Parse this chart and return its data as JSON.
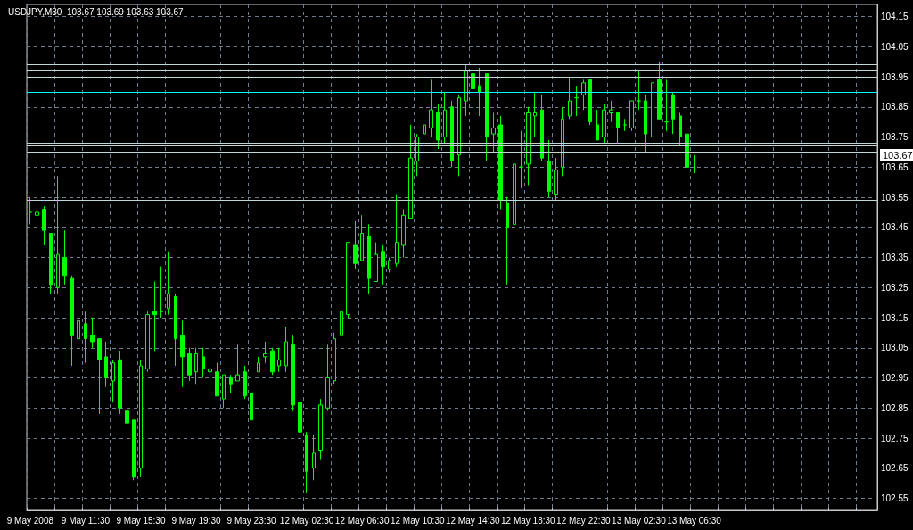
{
  "chart_data": {
    "type": "candlestick",
    "title": "USDJPY,M30  103.67 103.69 103.63 103.67",
    "color": "#00ff00",
    "categories": [
      "9 May 2008",
      null,
      null,
      null,
      null,
      null,
      null,
      null,
      "9 May 11:30",
      null,
      null,
      null,
      null,
      null,
      null,
      null,
      "9 May 15:30",
      null,
      null,
      null,
      null,
      null,
      null,
      null,
      "9 May 19:30",
      null,
      null,
      null,
      null,
      null,
      null,
      null,
      "9 May 23:30",
      null,
      null,
      null,
      null,
      null,
      null,
      null,
      "12 May 02:30",
      null,
      null,
      null,
      null,
      null,
      null,
      null,
      "12 May 06:30",
      null,
      null,
      null,
      null,
      null,
      null,
      null,
      "12 May 10:30",
      null,
      null,
      null,
      null,
      null,
      null,
      null,
      "12 May 14:30",
      null,
      null,
      null,
      null,
      null,
      null,
      null,
      "12 May 18:30",
      null,
      null,
      null,
      null,
      null,
      null,
      null,
      "12 May 22:30",
      null,
      null,
      null,
      null,
      null,
      null,
      null,
      "13 May 02:30",
      null,
      null,
      null,
      null,
      null,
      null,
      null,
      "13 May 06:30",
      null,
      null,
      null,
      null,
      null,
      null,
      null,
      null,
      null,
      null,
      null,
      null,
      null,
      null,
      null,
      null,
      null,
      null,
      null,
      null,
      null,
      null,
      null,
      null,
      null,
      null
    ],
    "ohlc": [
      [
        103.5,
        103.55,
        103.46,
        103.5
      ],
      [
        103.49,
        103.53,
        103.47,
        103.5
      ],
      [
        103.51,
        103.52,
        103.39,
        103.44
      ],
      [
        103.43,
        103.43,
        103.23,
        103.26
      ],
      [
        103.25,
        103.62,
        103.23,
        103.36
      ],
      [
        103.35,
        103.44,
        103.26,
        103.29
      ],
      [
        103.28,
        103.29,
        102.99,
        103.09
      ],
      [
        103.08,
        103.16,
        102.92,
        103.14
      ],
      [
        103.13,
        103.17,
        103.0,
        103.08
      ],
      [
        103.09,
        103.15,
        103.05,
        103.07
      ],
      [
        103.08,
        103.08,
        102.83,
        103.01
      ],
      [
        103.02,
        103.07,
        102.92,
        102.95
      ],
      [
        102.94,
        103.01,
        102.87,
        103.0
      ],
      [
        103.01,
        103.04,
        102.83,
        102.85
      ],
      [
        102.84,
        102.86,
        102.74,
        102.8
      ],
      [
        102.81,
        102.81,
        102.61,
        102.62
      ],
      [
        102.65,
        103.01,
        102.62,
        102.99
      ],
      [
        102.98,
        103.17,
        102.97,
        103.16
      ],
      [
        103.17,
        103.27,
        103.04,
        103.16
      ],
      [
        103.17,
        103.32,
        103.15,
        103.17
      ],
      [
        103.18,
        103.37,
        103.16,
        103.23
      ],
      [
        103.22,
        103.23,
        102.99,
        103.08
      ],
      [
        103.09,
        103.14,
        102.92,
        103.02
      ],
      [
        103.03,
        103.05,
        102.94,
        102.96
      ],
      [
        102.97,
        103.05,
        102.93,
        103.03
      ],
      [
        103.02,
        103.05,
        102.95,
        102.98
      ],
      [
        102.97,
        102.99,
        102.85,
        102.98
      ],
      [
        102.97,
        103.0,
        102.89,
        102.89
      ],
      [
        102.88,
        102.96,
        102.85,
        102.96
      ],
      [
        102.95,
        102.96,
        102.9,
        102.93
      ],
      [
        102.94,
        103.06,
        102.94,
        102.96
      ],
      [
        102.97,
        102.99,
        102.88,
        102.89
      ],
      [
        102.9,
        102.92,
        102.79,
        102.81
      ],
      [
        102.97,
        103.02,
        102.97,
        103.0
      ],
      [
        103.02,
        103.07,
        103.0,
        103.03
      ],
      [
        103.04,
        103.05,
        102.96,
        102.97
      ],
      [
        102.99,
        103.05,
        102.97,
        103.01
      ],
      [
        102.99,
        103.12,
        102.97,
        103.07
      ],
      [
        103.06,
        103.09,
        102.84,
        102.86
      ],
      [
        102.87,
        102.93,
        102.72,
        102.77
      ],
      [
        102.76,
        102.77,
        102.57,
        102.64
      ],
      [
        102.65,
        102.76,
        102.61,
        102.7
      ],
      [
        102.71,
        102.88,
        102.68,
        102.86
      ],
      [
        102.85,
        103.06,
        102.84,
        102.95
      ],
      [
        102.94,
        103.1,
        102.93,
        103.08
      ],
      [
        103.09,
        103.27,
        103.08,
        103.17
      ],
      [
        103.16,
        103.4,
        103.15,
        103.4
      ],
      [
        103.39,
        103.47,
        103.31,
        103.33
      ],
      [
        103.34,
        103.49,
        103.34,
        103.43
      ],
      [
        103.42,
        103.46,
        103.23,
        103.28
      ],
      [
        103.27,
        103.4,
        103.27,
        103.36
      ],
      [
        103.37,
        103.39,
        103.26,
        103.32
      ],
      [
        103.31,
        103.35,
        103.3,
        103.34
      ],
      [
        103.33,
        103.56,
        103.32,
        103.4
      ],
      [
        103.39,
        103.51,
        103.35,
        103.49
      ],
      [
        103.48,
        103.79,
        103.48,
        103.68
      ],
      [
        103.67,
        103.76,
        103.62,
        103.75
      ],
      [
        103.76,
        103.86,
        103.74,
        103.79
      ],
      [
        103.78,
        103.94,
        103.75,
        103.84
      ],
      [
        103.83,
        103.86,
        103.71,
        103.74
      ],
      [
        103.75,
        103.9,
        103.73,
        103.84
      ],
      [
        103.85,
        103.87,
        103.65,
        103.67
      ],
      [
        103.69,
        103.89,
        103.62,
        103.88
      ],
      [
        103.87,
        103.99,
        103.82,
        103.97
      ],
      [
        103.96,
        104.03,
        103.91,
        103.91
      ],
      [
        103.92,
        103.98,
        103.82,
        103.9
      ],
      [
        103.96,
        103.96,
        103.67,
        103.75
      ],
      [
        103.76,
        103.83,
        103.7,
        103.78
      ],
      [
        103.79,
        103.82,
        103.51,
        103.54
      ],
      [
        103.53,
        103.55,
        103.26,
        103.45
      ],
      [
        103.46,
        103.71,
        103.44,
        103.66
      ],
      [
        103.65,
        103.77,
        103.58,
        103.65
      ],
      [
        103.66,
        103.85,
        103.59,
        103.83
      ],
      [
        103.82,
        103.9,
        103.75,
        103.83
      ],
      [
        103.84,
        103.89,
        103.67,
        103.68
      ],
      [
        103.67,
        103.74,
        103.55,
        103.57
      ],
      [
        103.56,
        103.68,
        103.54,
        103.64
      ],
      [
        103.65,
        103.85,
        103.62,
        103.81
      ],
      [
        103.82,
        103.95,
        103.81,
        103.87
      ],
      [
        103.88,
        103.92,
        103.82,
        103.88
      ],
      [
        103.89,
        103.94,
        103.84,
        103.93
      ],
      [
        103.94,
        103.94,
        103.79,
        103.8
      ],
      [
        103.79,
        103.84,
        103.74,
        103.74
      ],
      [
        103.75,
        103.86,
        103.73,
        103.84
      ],
      [
        103.83,
        103.87,
        103.8,
        103.84
      ],
      [
        103.83,
        103.83,
        103.73,
        103.78
      ],
      [
        103.79,
        103.81,
        103.77,
        103.79
      ],
      [
        103.78,
        103.87,
        103.77,
        103.87
      ],
      [
        103.87,
        103.97,
        103.84,
        103.87
      ],
      [
        103.87,
        103.89,
        103.7,
        103.76
      ],
      [
        103.75,
        103.93,
        103.75,
        103.93
      ],
      [
        103.94,
        104.0,
        103.81,
        103.81
      ],
      [
        103.8,
        103.94,
        103.77,
        103.8
      ],
      [
        103.89,
        103.9,
        103.76,
        103.81
      ],
      [
        103.82,
        103.83,
        103.72,
        103.75
      ],
      [
        103.76,
        103.79,
        103.64,
        103.65
      ],
      [
        103.67,
        103.69,
        103.63,
        103.67
      ],
      null,
      null,
      null,
      null,
      null,
      null,
      null,
      null,
      null,
      null,
      null,
      null,
      null,
      null,
      null,
      null,
      null,
      null,
      null,
      null,
      null,
      null,
      null,
      null,
      null,
      null
    ],
    "ylim": [
      102.51,
      104.19
    ],
    "yticks": [
      102.55,
      102.65,
      102.75,
      102.85,
      102.95,
      103.05,
      103.15,
      103.25,
      103.35,
      103.45,
      103.55,
      103.65,
      103.75,
      103.85,
      103.95,
      104.05,
      104.15
    ],
    "grid": true,
    "ref_lines": [
      {
        "axis": "y",
        "value": 103.99,
        "color": "#c0d8d8"
      },
      {
        "axis": "y",
        "value": 103.97,
        "color": "#c0d8d8"
      },
      {
        "axis": "y",
        "value": 103.95,
        "color": "#c0d8d8"
      },
      {
        "axis": "y",
        "value": 103.9,
        "color": "#00ffff"
      },
      {
        "axis": "y",
        "value": 103.86,
        "color": "#00ffff"
      },
      {
        "axis": "y",
        "value": 103.73,
        "color": "#c0d8d8"
      },
      {
        "axis": "y",
        "value": 103.72,
        "color": "#c0d8d8"
      },
      {
        "axis": "y",
        "value": 103.7,
        "color": "#c0d8d8"
      },
      {
        "axis": "y",
        "value": 103.54,
        "color": "#c0d8d8"
      },
      {
        "axis": "y",
        "value": 103.67,
        "label": "103.67",
        "color": "#8090a0"
      }
    ]
  }
}
